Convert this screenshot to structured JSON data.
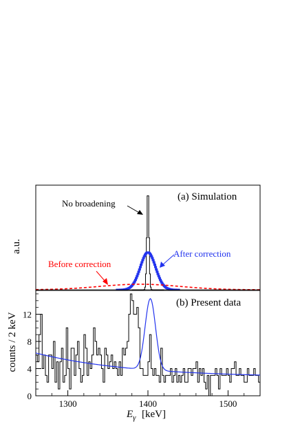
{
  "chart_data": [
    {
      "type": "line",
      "title": "(a) Simulation",
      "ylabel": "a.u.",
      "xlim": [
        1260,
        1540
      ],
      "ylim": [
        0,
        1.0
      ],
      "annotations": [
        {
          "text": "No broadening",
          "color": "#000000"
        },
        {
          "text": "After correction",
          "color": "#2233ee"
        },
        {
          "text": "Before correction",
          "color": "#ff0000"
        }
      ],
      "series": [
        {
          "name": "No broadening",
          "color": "#000000",
          "style": "histogram",
          "center": 1400,
          "sigma": 1.3,
          "peak": 1.0
        },
        {
          "name": "After correction",
          "color": "#2233ee",
          "style": "histogram",
          "center": 1400,
          "sigma": 9.5,
          "peak": 0.37
        },
        {
          "name": "Before correction",
          "color": "#ff0000",
          "style": "dashed",
          "center": 1390,
          "sigma": 50,
          "peak": 0.055
        }
      ]
    },
    {
      "type": "line",
      "title": "(b) Present data",
      "xlabel": "E_γ [keV]",
      "ylabel": "counts / 2 keV",
      "xlim": [
        1260,
        1540
      ],
      "ylim": [
        0,
        15.5
      ],
      "xticks": [
        1300,
        1400,
        1500
      ],
      "yticks": [
        0,
        4,
        8,
        12
      ],
      "bin_width": 2,
      "histogram": {
        "x_start": 1260,
        "counts": [
          6,
          5,
          9,
          12,
          4,
          6,
          3,
          2,
          6,
          6,
          4,
          8,
          2,
          5,
          1,
          5,
          7,
          2,
          3,
          10,
          4,
          1,
          7,
          7,
          3,
          6,
          8,
          4,
          2,
          3,
          9,
          7,
          3,
          5,
          4,
          6,
          10,
          8,
          6,
          7,
          6,
          4,
          2,
          7,
          6,
          4,
          5,
          6,
          4,
          5,
          4,
          3,
          5,
          3,
          7,
          6,
          7,
          8,
          12,
          15,
          14,
          12,
          12,
          13,
          10,
          4,
          4,
          3,
          3,
          3,
          5,
          9,
          4,
          3,
          4,
          3,
          3,
          2,
          7,
          3,
          2,
          3,
          3,
          3,
          4,
          2,
          3,
          4,
          2,
          3,
          2,
          3,
          4,
          2,
          2,
          4,
          4,
          3,
          4,
          4,
          5,
          2,
          4,
          3,
          4,
          2,
          1,
          3,
          0,
          3,
          3,
          3,
          4,
          3,
          1,
          4,
          3,
          3,
          3,
          4,
          3,
          2,
          4,
          4,
          5,
          3,
          3,
          4,
          3,
          3,
          2,
          2,
          4,
          3,
          3,
          3,
          4,
          3,
          3,
          2
        ]
      },
      "fit": {
        "color": "#2233ee",
        "background": {
          "a": 6.3,
          "b": 2.7,
          "tau": 120
        },
        "peak": {
          "center": 1403,
          "sigma": 6.5,
          "amplitude": 10.5
        }
      }
    }
  ]
}
